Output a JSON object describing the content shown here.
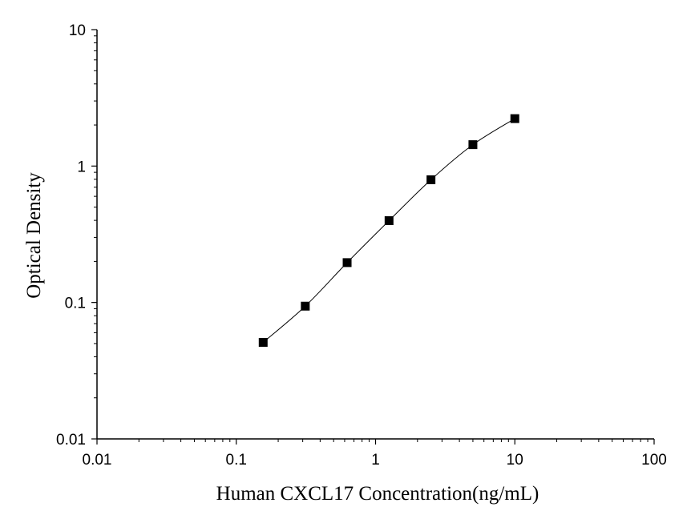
{
  "chart_data": {
    "type": "scatter",
    "xlabel": "Human CXCL17 Concentration(ng/mL)",
    "ylabel": "Optical Density",
    "x_scale": "log",
    "y_scale": "log",
    "xlim": [
      0.01,
      100
    ],
    "ylim": [
      0.01,
      10
    ],
    "x_ticks": [
      "0.01",
      "0.1",
      "1",
      "10",
      "100"
    ],
    "y_ticks": [
      "0.01",
      "0.1",
      "1",
      "10"
    ],
    "grid": false,
    "series": [
      {
        "x": [
          0.156,
          0.313,
          0.625,
          1.25,
          2.5,
          5,
          10
        ],
        "y": [
          0.051,
          0.094,
          0.196,
          0.398,
          0.794,
          1.435,
          2.227
        ],
        "marker": "square",
        "fit_line": "smooth curve"
      }
    ],
    "colors": {
      "marker": "#000000",
      "line": "#000000"
    }
  }
}
